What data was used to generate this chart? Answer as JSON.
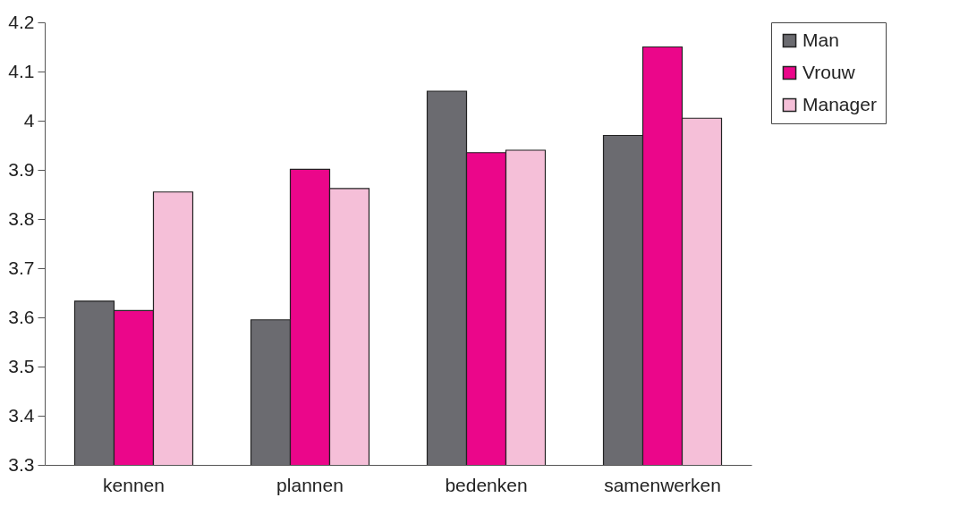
{
  "chart_data": {
    "type": "bar",
    "categories": [
      "kennen",
      "plannen",
      "bedenken",
      "samenwerken"
    ],
    "series": [
      {
        "name": "Man",
        "color": "#6b6b70",
        "values": [
          3.633,
          3.595,
          4.06,
          3.97
        ]
      },
      {
        "name": "Vrouw",
        "color": "#eb068a",
        "values": [
          3.614,
          3.901,
          3.935,
          4.15
        ]
      },
      {
        "name": "Manager",
        "color": "#f5bfd8",
        "values": [
          3.855,
          3.862,
          3.94,
          4.005
        ]
      }
    ],
    "ylim": [
      3.3,
      4.2
    ],
    "yticks": [
      3.3,
      3.4,
      3.5,
      3.6,
      3.7,
      3.8,
      3.9,
      4,
      4.1,
      4.2
    ],
    "grid": false,
    "legend": "right"
  }
}
